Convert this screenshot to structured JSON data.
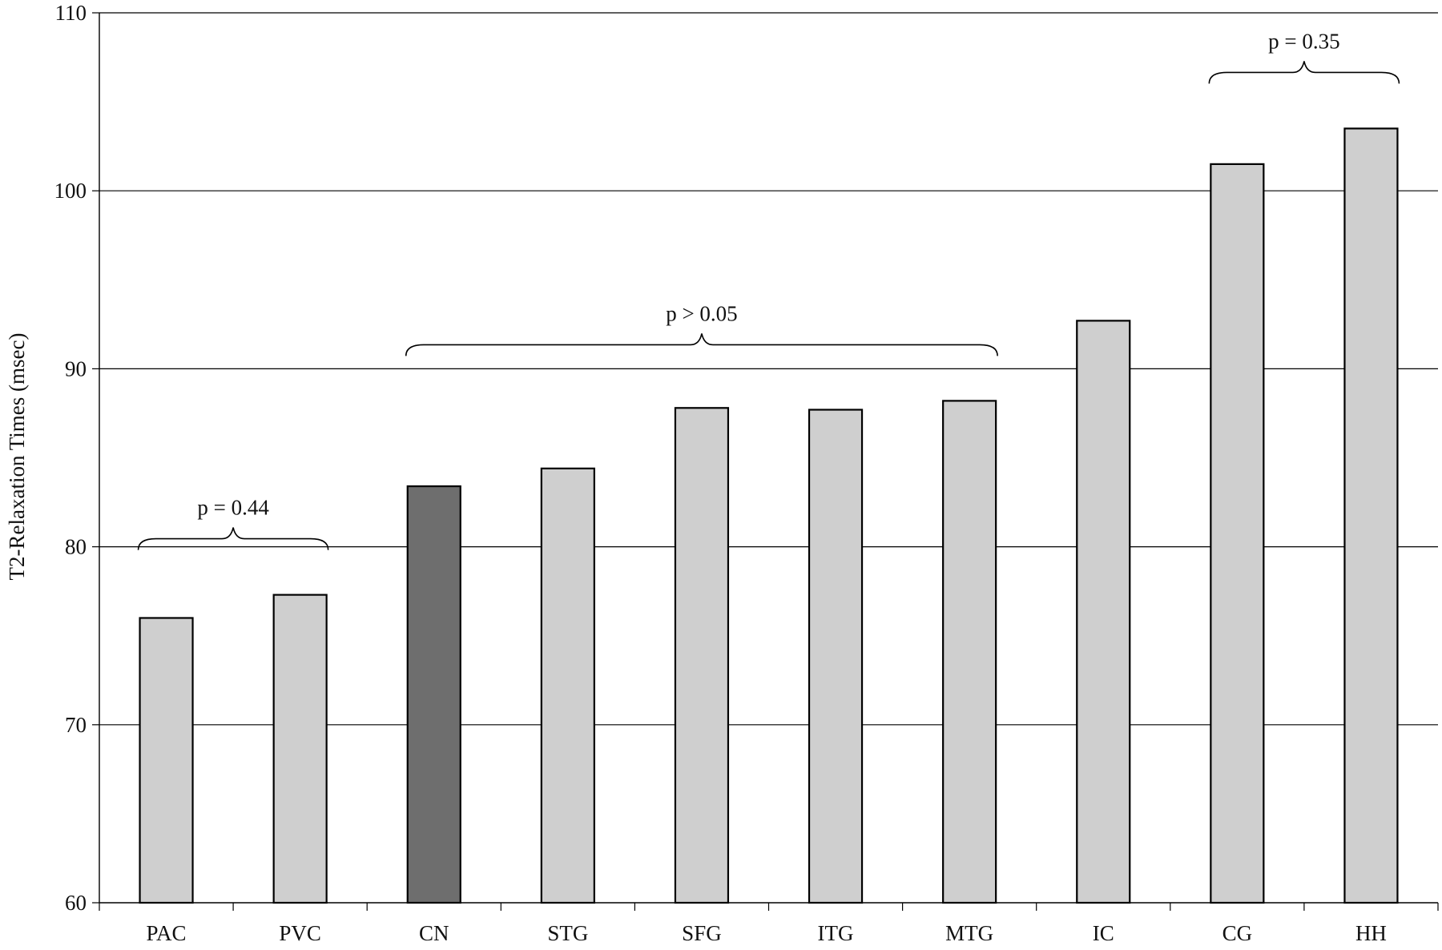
{
  "chart_data": {
    "type": "bar",
    "title": "",
    "xlabel": "",
    "ylabel": "T2-Relaxation Times (msec)",
    "ylim": [
      60,
      110
    ],
    "yticks": [
      60,
      70,
      80,
      90,
      100,
      110
    ],
    "grid": true,
    "categories": [
      "PAC",
      "PVC",
      "CN",
      "STG",
      "SFG",
      "ITG",
      "MTG",
      "IC",
      "CG",
      "HH"
    ],
    "values": [
      76.0,
      77.3,
      83.4,
      84.4,
      87.8,
      87.7,
      88.2,
      92.7,
      101.5,
      103.5
    ],
    "colors": [
      "#cfcfcf",
      "#cfcfcf",
      "#6e6e6e",
      "#cfcfcf",
      "#cfcfcf",
      "#cfcfcf",
      "#cfcfcf",
      "#cfcfcf",
      "#cfcfcf",
      "#cfcfcf"
    ],
    "annotations": [
      {
        "text": "p = 0.44",
        "from": "PAC",
        "to": "PVC"
      },
      {
        "text": "p > 0.05",
        "from": "CN",
        "to": "MTG"
      },
      {
        "text": "p = 0.35",
        "from": "CG",
        "to": "HH"
      }
    ]
  }
}
